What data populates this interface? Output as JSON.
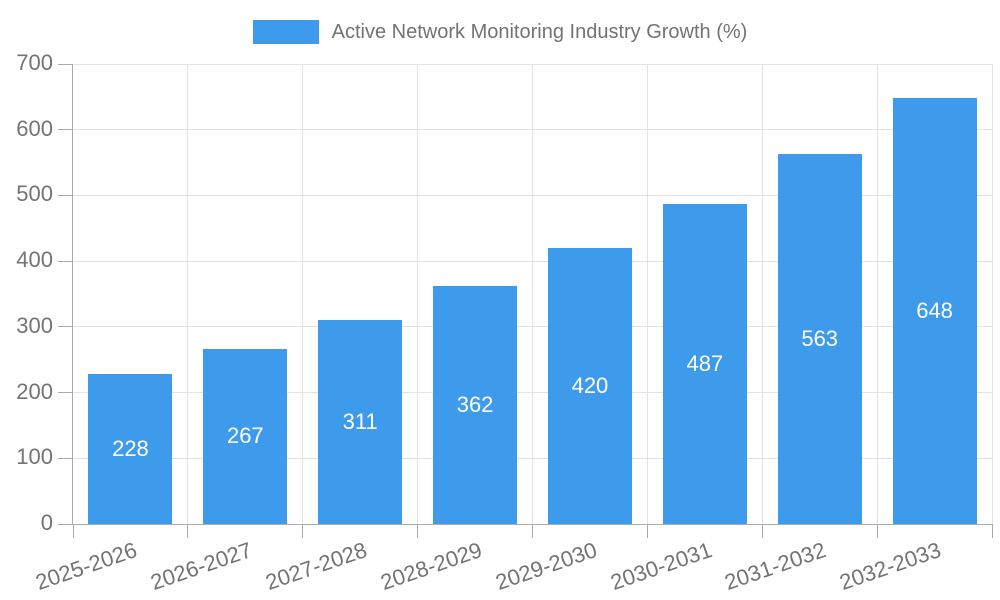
{
  "chart_data": {
    "type": "bar",
    "title": "Active Network Monitoring Industry Growth (%)",
    "categories": [
      "2025-2026",
      "2026-2027",
      "2027-2028",
      "2028-2029",
      "2029-2030",
      "2030-2031",
      "2031-2032",
      "2032-2033"
    ],
    "series": [
      {
        "name": "Active Network Monitoring Industry Growth (%)",
        "values": [
          228,
          267,
          311,
          362,
          420,
          487,
          563,
          648
        ],
        "color": "#3E9BEC"
      }
    ],
    "value_labels": [
      228,
      267,
      311,
      362,
      420,
      487,
      563,
      648
    ],
    "xlabel": "",
    "ylabel": "",
    "ylim": [
      0,
      700
    ],
    "yticks": [
      0,
      100,
      200,
      300,
      400,
      500,
      600,
      700
    ],
    "grid": true,
    "legend_position": "top-center",
    "value_label_position": "inside-center",
    "x_tick_rotation_deg": -19,
    "colors": {
      "bar": "#3E9BEC",
      "value_label_text": "#FFFFFF",
      "axis_line": "#ABABAB",
      "tick_mark": "#ABABAB",
      "gridline": "#E3E3E3",
      "tick_text": "#737373",
      "legend_text": "#737373",
      "background": "#FFFFFF"
    }
  }
}
